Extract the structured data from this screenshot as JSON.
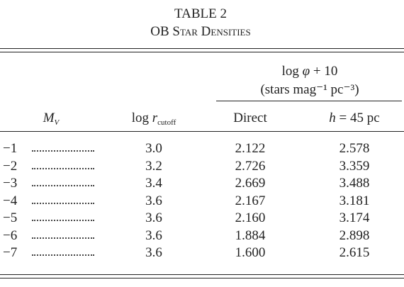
{
  "header": {
    "title": "TABLE 2",
    "subtitle": "OB Star Densities"
  },
  "table": {
    "spanner": {
      "prefix": "log",
      "symbol": "φ",
      "suffix": "+ 10",
      "units": "(stars mag⁻¹ pc⁻³)"
    },
    "columns": [
      {
        "symbol": "M",
        "sub": "V"
      },
      {
        "prefix": "log",
        "symbol": "r",
        "sub": "cutoff"
      },
      {
        "text": "Direct"
      },
      {
        "symbol": "h",
        "suffix": "= 45 pc"
      }
    ],
    "rows": [
      [
        "−1",
        "3.0",
        "2.122",
        "2.578"
      ],
      [
        "−2",
        "3.2",
        "2.726",
        "3.359"
      ],
      [
        "−3",
        "3.4",
        "2.669",
        "3.488"
      ],
      [
        "−4",
        "3.6",
        "2.167",
        "3.181"
      ],
      [
        "−5",
        "3.6",
        "2.160",
        "3.174"
      ],
      [
        "−6",
        "3.6",
        "1.884",
        "2.898"
      ],
      [
        "−7",
        "3.6",
        "1.600",
        "2.615"
      ]
    ]
  }
}
